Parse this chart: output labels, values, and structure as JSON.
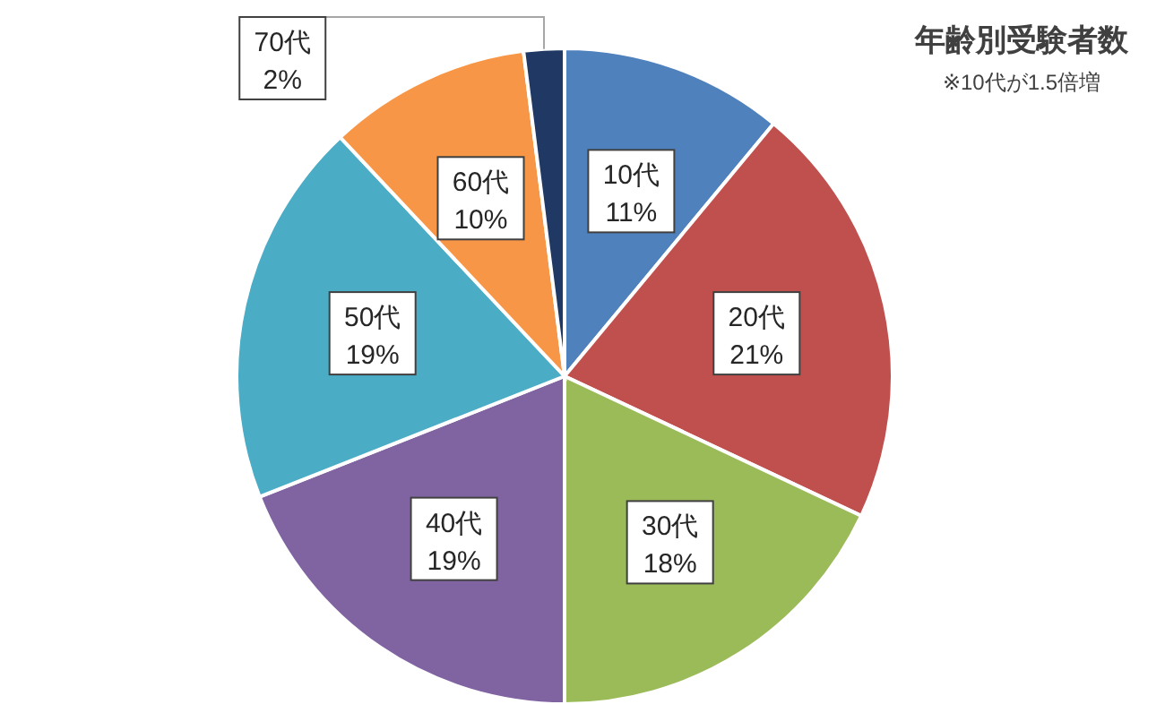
{
  "chart_data": {
    "type": "pie",
    "title": "年齢別受験者数",
    "subtitle": "※10代が1.5倍増",
    "categories": [
      "10代",
      "20代",
      "30代",
      "40代",
      "50代",
      "60代",
      "70代"
    ],
    "values": [
      11,
      21,
      18,
      19,
      19,
      10,
      2
    ],
    "value_labels": [
      "11%",
      "21%",
      "18%",
      "19%",
      "19%",
      "10%",
      "2%"
    ],
    "colors": [
      "#4f81bd",
      "#c0504d",
      "#9bbb59",
      "#8064a2",
      "#4bacc6",
      "#f79646",
      "#1f3864"
    ]
  }
}
